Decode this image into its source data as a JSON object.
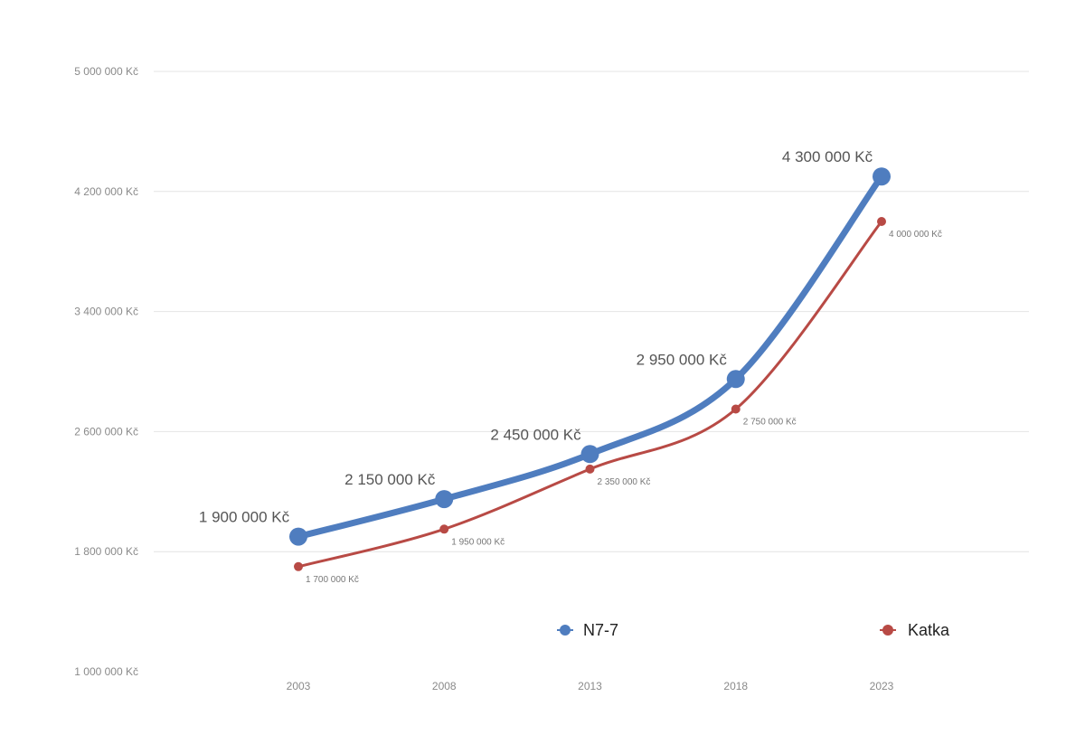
{
  "chart_data": {
    "type": "line",
    "title": "",
    "xlabel": "",
    "ylabel": "",
    "x": [
      "2003",
      "2008",
      "2013",
      "2018",
      "2023"
    ],
    "ylim": [
      1000000,
      5000000
    ],
    "yticks": [
      "1 000 000 Kč",
      "1 800 000 Kč",
      "2 600 000 Kč",
      "3 400 000 Kč",
      "4 200 000 Kč",
      "5 000 000 Kč"
    ],
    "grid": true,
    "legend_position": "bottom",
    "series": [
      {
        "name": "N7-7",
        "color": "#4f7dbf",
        "values": [
          1900000,
          2150000,
          2450000,
          2950000,
          4300000
        ],
        "labels": [
          "1 900 000 Kč",
          "2 150 000 Kč",
          "2 450 000 Kč",
          "2 950 000 Kč",
          "4 300 000 Kč"
        ]
      },
      {
        "name": "Katka",
        "color": "#b84a45",
        "values": [
          1700000,
          1950000,
          2350000,
          2750000,
          4000000
        ],
        "labels": [
          "1 700 000 Kč",
          "1 950 000 Kč",
          "2 350 000 Kč",
          "2 750 000 Kč",
          "4 000 000 Kč"
        ]
      }
    ]
  }
}
